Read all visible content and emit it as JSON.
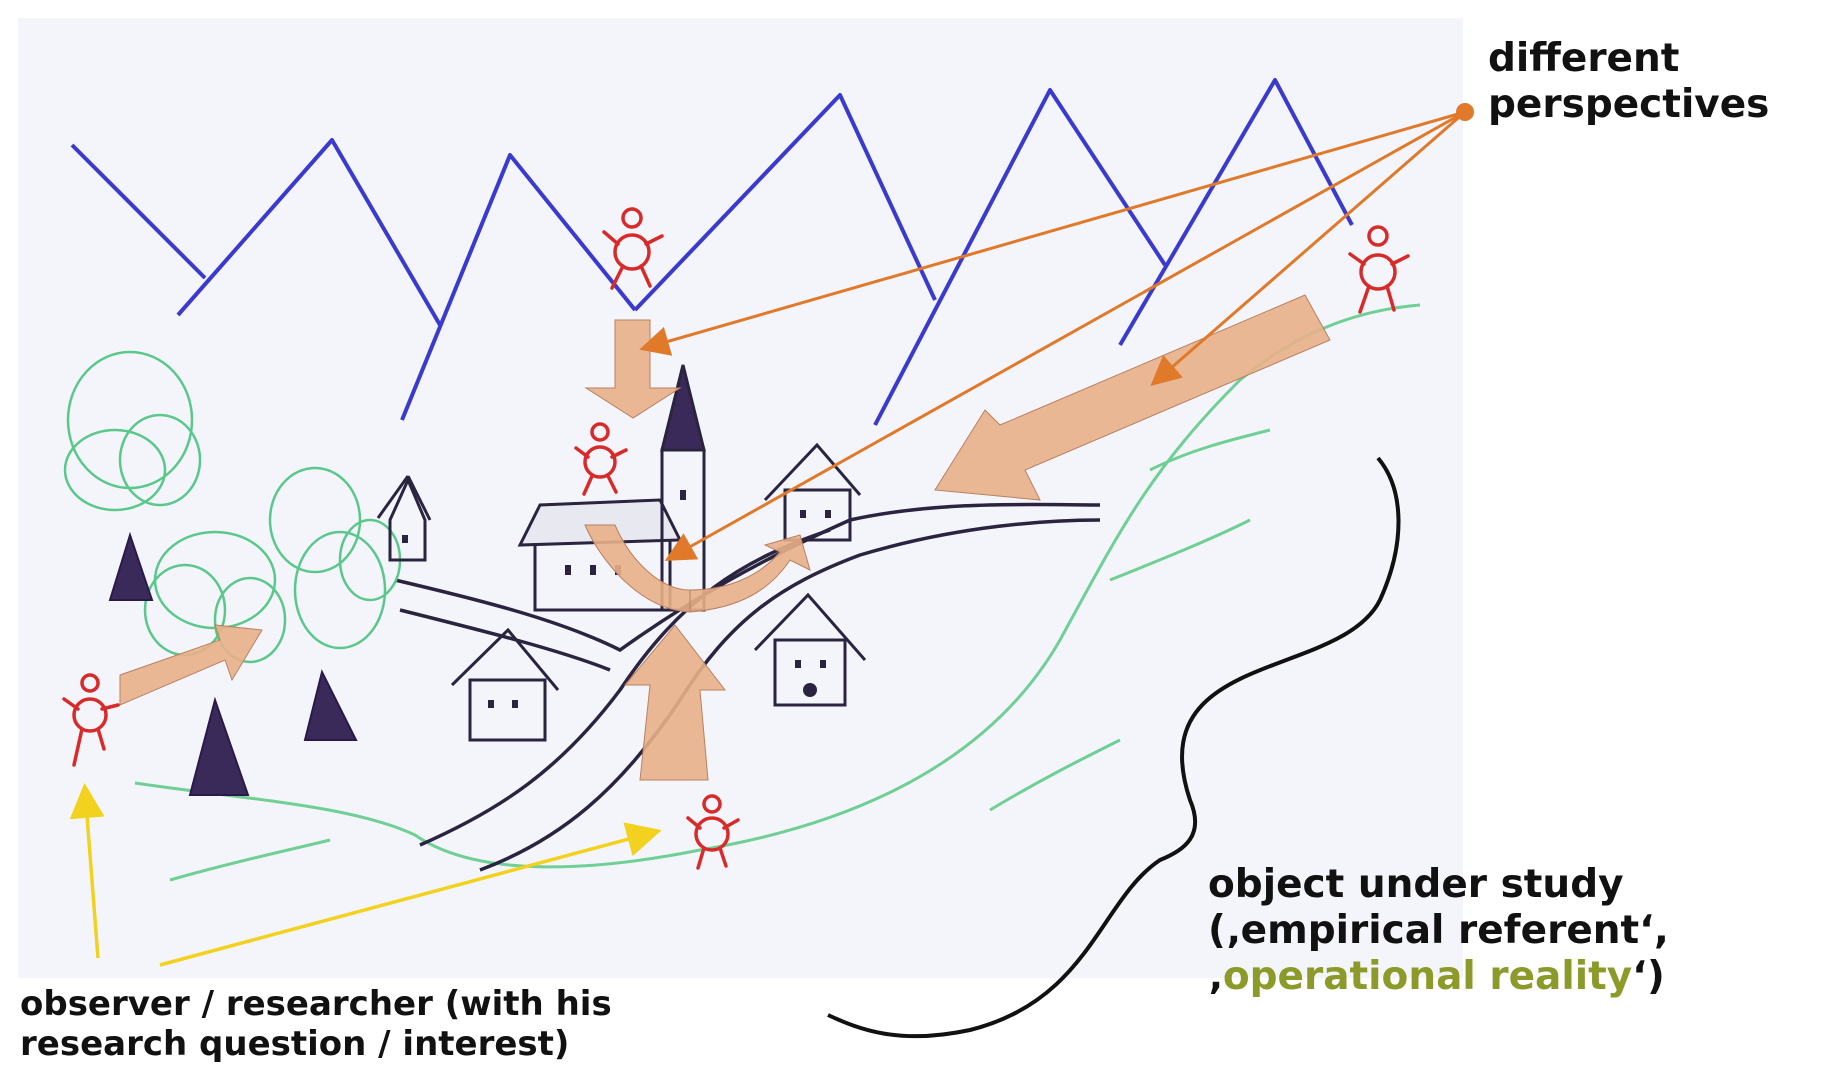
{
  "labels": {
    "perspectives_line1": "different",
    "perspectives_line2": "perspectives",
    "object_line1": "object under study",
    "object_line2": "(‚empirical referent‘,",
    "object_line3_prefix": "‚",
    "object_line3_highlight": "operational reality",
    "object_line3_suffix": "‘)",
    "observer_line1": "observer / researcher (with his",
    "observer_line2": "research question / interest)"
  },
  "colors": {
    "mountains": "#3a3ad0",
    "perspective_arrows": "#e07a2a",
    "observer_arrows": "#f2d21e",
    "focus_arrows": "#e8b088",
    "figures": "#d92a2a",
    "trees": "#5ac88a",
    "highlight": "#8c9a2a"
  }
}
